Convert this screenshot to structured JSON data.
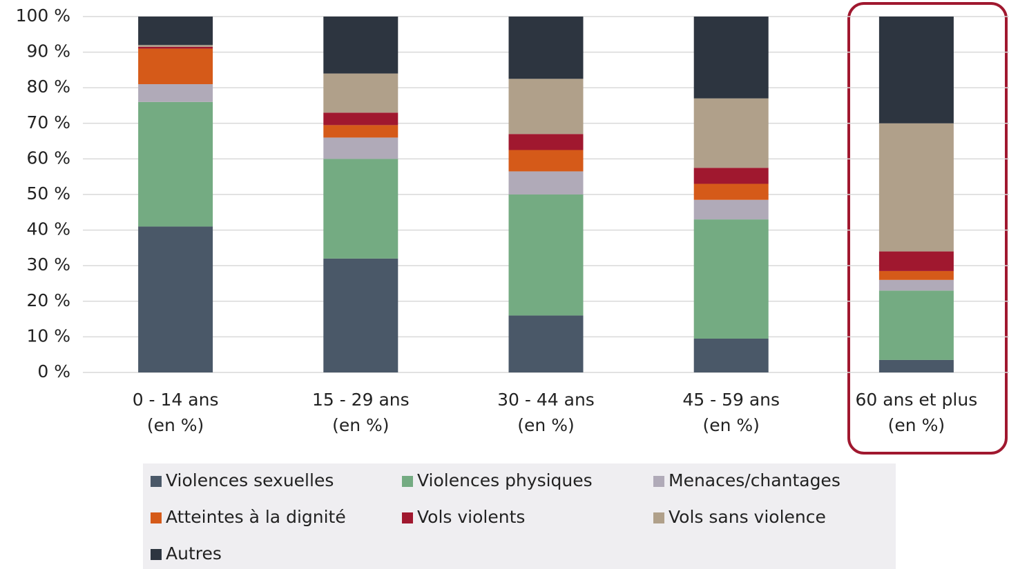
{
  "chart_data": {
    "type": "stacked_bar",
    "categories": [
      "0 - 14 ans\n(en %)",
      "15 - 29 ans\n(en %)",
      "30 - 44 ans\n(en %)",
      "45 - 59 ans\n(en %)",
      "60 ans et plus\n(en %)"
    ],
    "series": [
      {
        "name": "Violences sexuelles",
        "color": "#4a5868",
        "values": [
          41,
          32,
          16,
          9.5,
          3.5
        ]
      },
      {
        "name": "Violences physiques",
        "color": "#74ab82",
        "values": [
          35,
          28,
          34,
          33.5,
          19.5
        ]
      },
      {
        "name": "Menaces/chantages",
        "color": "#b0aab8",
        "values": [
          5,
          6,
          6.5,
          5.5,
          3
        ]
      },
      {
        "name": "Atteintes à la dignité",
        "color": "#d55a19",
        "values": [
          10,
          3.5,
          6,
          4.5,
          2.5
        ]
      },
      {
        "name": "Vols violents",
        "color": "#a0182f",
        "values": [
          0.5,
          3.5,
          4.5,
          4.5,
          5.5
        ]
      },
      {
        "name": "Vols sans violence",
        "color": "#b0a08a",
        "values": [
          0.5,
          11,
          15.5,
          19.5,
          36
        ]
      },
      {
        "name": "Autres",
        "color": "#2d3540",
        "values": [
          8,
          16,
          17.5,
          23,
          30
        ]
      }
    ],
    "ylim": [
      0,
      100
    ],
    "yticks": [
      {
        "value": 0,
        "label": "0 %"
      },
      {
        "value": 10,
        "label": "10 %"
      },
      {
        "value": 20,
        "label": "20 %"
      },
      {
        "value": 30,
        "label": "30 %"
      },
      {
        "value": 40,
        "label": "40 %"
      },
      {
        "value": 50,
        "label": "50 %"
      },
      {
        "value": 60,
        "label": "60 %"
      },
      {
        "value": 70,
        "label": "70 %"
      },
      {
        "value": 80,
        "label": "80 %"
      },
      {
        "value": 90,
        "label": "90 %"
      },
      {
        "value": 100,
        "label": "100 %"
      }
    ],
    "grid": true,
    "legend": "bottom"
  }
}
